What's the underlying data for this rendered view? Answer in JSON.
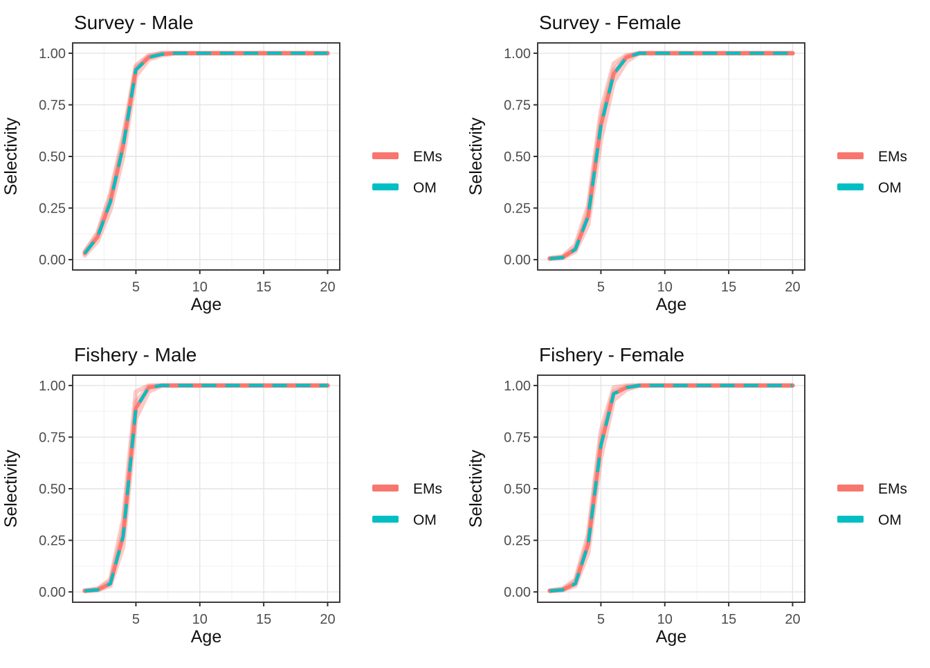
{
  "figure": {
    "background": "#ffffff"
  },
  "style": {
    "em_color": "#F8766D",
    "om_color": "#00BFC4",
    "em_halo_opacity": 0.38,
    "grid_major_color": "#E4E4E4",
    "grid_minor_color": "#F1F1F1",
    "panel_border_color": "#3C3C3C",
    "tick_mark_color": "#333333",
    "tick_label_color": "#4D4D4D",
    "text_color": "#111111"
  },
  "legend": {
    "position": "right",
    "entries": [
      {
        "label": "EMs",
        "series": "ems"
      },
      {
        "label": "OM",
        "series": "om"
      }
    ]
  },
  "chart_data": [
    {
      "type": "line",
      "id": "survey-male",
      "title": "Survey - Male",
      "xlabel": "Age",
      "ylabel": "Selectivity",
      "xlim": [
        1,
        20
      ],
      "ylim": [
        0,
        1
      ],
      "grid": true,
      "xticks": [
        5,
        10,
        15,
        20
      ],
      "xticks_minor": [
        2.5,
        7.5,
        12.5,
        17.5
      ],
      "yticks": [
        0,
        0.25,
        0.5,
        0.75,
        1
      ],
      "ytick_labels": [
        "0.00",
        "0.25",
        "0.50",
        "0.75",
        "1.00"
      ],
      "yticks_minor": [
        0.125,
        0.375,
        0.625,
        0.875
      ],
      "ages": [
        1,
        2,
        3,
        4,
        5,
        6,
        7,
        8,
        9,
        10,
        11,
        12,
        13,
        14,
        15,
        16,
        17,
        18,
        19,
        20
      ],
      "om": [
        0.03,
        0.11,
        0.28,
        0.55,
        0.92,
        0.98,
        0.995,
        1,
        1,
        1,
        1,
        1,
        1,
        1,
        1,
        1,
        1,
        1,
        1,
        1
      ],
      "ems": [
        [
          0.04,
          0.13,
          0.32,
          0.6,
          0.94,
          0.99,
          1,
          1,
          1,
          1,
          1,
          1,
          1,
          1,
          1,
          1,
          1,
          1,
          1,
          1
        ],
        [
          0.02,
          0.09,
          0.24,
          0.5,
          0.89,
          0.97,
          0.99,
          1,
          1,
          1,
          1,
          1,
          1,
          1,
          1,
          1,
          1,
          1,
          1,
          1
        ],
        [
          0.035,
          0.12,
          0.3,
          0.57,
          0.93,
          0.985,
          1,
          1,
          1,
          1,
          1,
          1,
          1,
          1,
          1,
          1,
          1,
          1,
          1,
          1
        ]
      ]
    },
    {
      "type": "line",
      "id": "survey-female",
      "title": "Survey - Female",
      "xlabel": "Age",
      "ylabel": "Selectivity",
      "xlim": [
        1,
        20
      ],
      "ylim": [
        0,
        1
      ],
      "grid": true,
      "xticks": [
        5,
        10,
        15,
        20
      ],
      "xticks_minor": [
        2.5,
        7.5,
        12.5,
        17.5
      ],
      "yticks": [
        0,
        0.25,
        0.5,
        0.75,
        1
      ],
      "ytick_labels": [
        "0.00",
        "0.25",
        "0.50",
        "0.75",
        "1.00"
      ],
      "yticks_minor": [
        0.125,
        0.375,
        0.625,
        0.875
      ],
      "ages": [
        1,
        2,
        3,
        4,
        5,
        6,
        7,
        8,
        9,
        10,
        11,
        12,
        13,
        14,
        15,
        16,
        17,
        18,
        19,
        20
      ],
      "om": [
        0.005,
        0.01,
        0.05,
        0.21,
        0.65,
        0.9,
        0.98,
        1,
        1,
        1,
        1,
        1,
        1,
        1,
        1,
        1,
        1,
        1,
        1,
        1
      ],
      "ems": [
        [
          0.007,
          0.015,
          0.07,
          0.26,
          0.72,
          0.95,
          0.99,
          1,
          1,
          1,
          1,
          1,
          1,
          1,
          1,
          1,
          1,
          1,
          1,
          1
        ],
        [
          0.004,
          0.008,
          0.04,
          0.17,
          0.58,
          0.86,
          0.96,
          1,
          1,
          1,
          1,
          1,
          1,
          1,
          1,
          1,
          1,
          1,
          1,
          1
        ],
        [
          0.006,
          0.012,
          0.055,
          0.23,
          0.68,
          0.92,
          0.985,
          1,
          1,
          1,
          1,
          1,
          1,
          1,
          1,
          1,
          1,
          1,
          1,
          1
        ]
      ]
    },
    {
      "type": "line",
      "id": "fishery-male",
      "title": "Fishery - Male",
      "xlabel": "Age",
      "ylabel": "Selectivity",
      "xlim": [
        1,
        20
      ],
      "ylim": [
        0,
        1
      ],
      "grid": true,
      "xticks": [
        5,
        10,
        15,
        20
      ],
      "xticks_minor": [
        2.5,
        7.5,
        12.5,
        17.5
      ],
      "yticks": [
        0,
        0.25,
        0.5,
        0.75,
        1
      ],
      "ytick_labels": [
        "0.00",
        "0.25",
        "0.50",
        "0.75",
        "1.00"
      ],
      "yticks_minor": [
        0.125,
        0.375,
        0.625,
        0.875
      ],
      "ages": [
        1,
        2,
        3,
        4,
        5,
        6,
        7,
        8,
        9,
        10,
        11,
        12,
        13,
        14,
        15,
        16,
        17,
        18,
        19,
        20
      ],
      "om": [
        0.005,
        0.01,
        0.04,
        0.27,
        0.89,
        0.99,
        1,
        1,
        1,
        1,
        1,
        1,
        1,
        1,
        1,
        1,
        1,
        1,
        1,
        1
      ],
      "ems": [
        [
          0.007,
          0.015,
          0.06,
          0.35,
          0.97,
          1,
          1,
          1,
          1,
          1,
          1,
          1,
          1,
          1,
          1,
          1,
          1,
          1,
          1,
          1
        ],
        [
          0.004,
          0.008,
          0.03,
          0.22,
          0.84,
          0.97,
          1,
          1,
          1,
          1,
          1,
          1,
          1,
          1,
          1,
          1,
          1,
          1,
          1,
          1
        ],
        [
          0.006,
          0.012,
          0.05,
          0.3,
          0.92,
          0.995,
          1,
          1,
          1,
          1,
          1,
          1,
          1,
          1,
          1,
          1,
          1,
          1,
          1,
          1
        ]
      ]
    },
    {
      "type": "line",
      "id": "fishery-female",
      "title": "Fishery - Female",
      "xlabel": "Age",
      "ylabel": "Selectivity",
      "xlim": [
        1,
        20
      ],
      "ylim": [
        0,
        1
      ],
      "grid": true,
      "xticks": [
        5,
        10,
        15,
        20
      ],
      "xticks_minor": [
        2.5,
        7.5,
        12.5,
        17.5
      ],
      "yticks": [
        0,
        0.25,
        0.5,
        0.75,
        1
      ],
      "ytick_labels": [
        "0.00",
        "0.25",
        "0.50",
        "0.75",
        "1.00"
      ],
      "yticks_minor": [
        0.125,
        0.375,
        0.625,
        0.875
      ],
      "ages": [
        1,
        2,
        3,
        4,
        5,
        6,
        7,
        8,
        9,
        10,
        11,
        12,
        13,
        14,
        15,
        16,
        17,
        18,
        19,
        20
      ],
      "om": [
        0.005,
        0.01,
        0.04,
        0.23,
        0.71,
        0.96,
        0.99,
        1,
        1,
        1,
        1,
        1,
        1,
        1,
        1,
        1,
        1,
        1,
        1,
        1
      ],
      "ems": [
        [
          0.007,
          0.015,
          0.06,
          0.28,
          0.78,
          0.99,
          1,
          1,
          1,
          1,
          1,
          1,
          1,
          1,
          1,
          1,
          1,
          1,
          1,
          1
        ],
        [
          0.004,
          0.008,
          0.03,
          0.19,
          0.65,
          0.93,
          0.98,
          1,
          1,
          1,
          1,
          1,
          1,
          1,
          1,
          1,
          1,
          1,
          1,
          1
        ],
        [
          0.006,
          0.012,
          0.05,
          0.25,
          0.74,
          0.97,
          0.995,
          1,
          1,
          1,
          1,
          1,
          1,
          1,
          1,
          1,
          1,
          1,
          1,
          1
        ]
      ]
    }
  ]
}
